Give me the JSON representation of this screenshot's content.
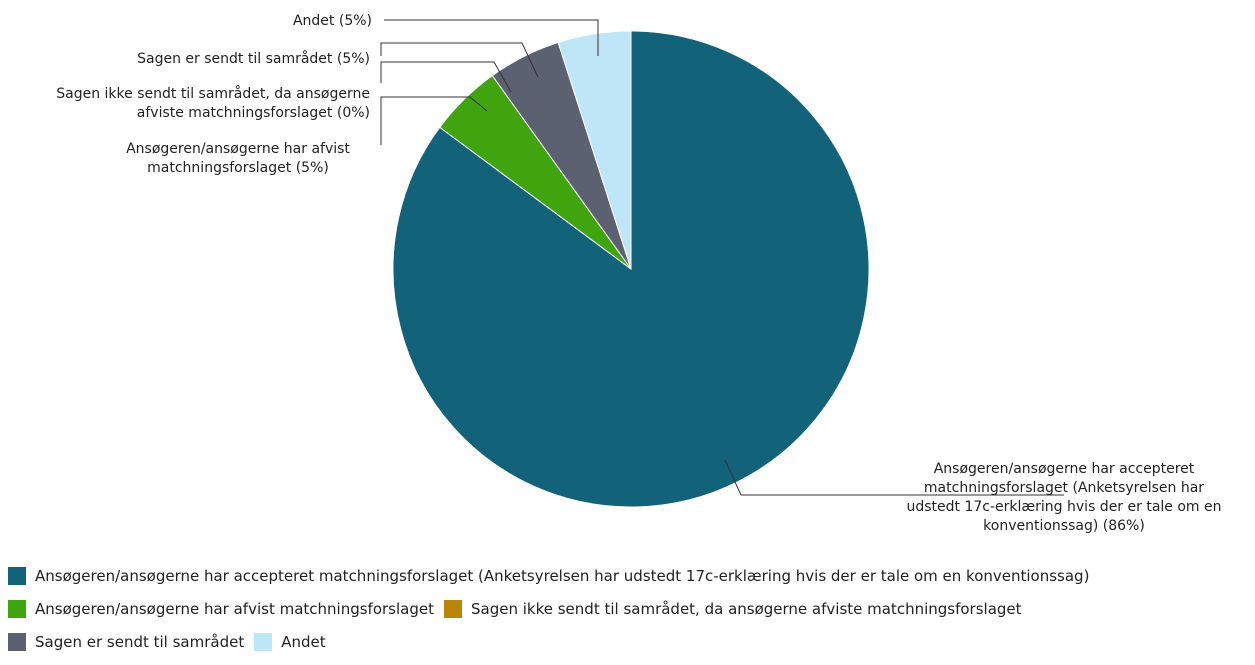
{
  "colors": {
    "accepted": "#12627a",
    "rejected": "#3fa40e",
    "not_sent": "#b8860b",
    "sent": "#5b6170",
    "other": "#bfe6f7"
  },
  "chart_data": {
    "type": "pie",
    "title": "",
    "slices": [
      {
        "key": "accepted",
        "label": "Ansøgeren/ansøgerne har accepteret matchningsforslaget (Anketsyrelsen har udstedt 17c-erklæring hvis der er tale om en konventionssag)",
        "value": 86,
        "color": "#12627a",
        "data_label_lines": [
          "Ansøgeren/ansøgerne har accepteret",
          "matchningsforslaget (Anketsyrelsen har",
          "udstedt 17c-erklæring hvis der er tale om en",
          "konventionssag) (86%)"
        ]
      },
      {
        "key": "rejected",
        "label": "Ansøgeren/ansøgerne har afvist matchningsforslaget",
        "value": 5,
        "color": "#3fa40e",
        "data_label_lines": [
          "Ansøgeren/ansøgerne har afvist",
          "matchningsforslaget (5%)"
        ]
      },
      {
        "key": "not_sent",
        "label": "Sagen ikke sendt til samrådet, da ansøgerne afviste matchningsforslaget",
        "value": 0,
        "color": "#b8860b",
        "data_label_lines": [
          "Sagen ikke sendt til samrådet, da ansøgerne",
          "afviste matchningsforslaget (0%)"
        ]
      },
      {
        "key": "sent",
        "label": "Sagen er sendt til samrådet",
        "value": 5,
        "color": "#5b6170",
        "data_label_lines": [
          "Sagen er sendt til samrådet (5%)"
        ]
      },
      {
        "key": "other",
        "label": "Andet",
        "value": 5,
        "color": "#bfe6f7",
        "data_label_lines": [
          "Andet (5%)"
        ]
      }
    ],
    "legend_position": "bottom",
    "legend_rows": [
      [
        "accepted"
      ],
      [
        "rejected",
        "not_sent"
      ],
      [
        "sent",
        "other"
      ]
    ]
  }
}
